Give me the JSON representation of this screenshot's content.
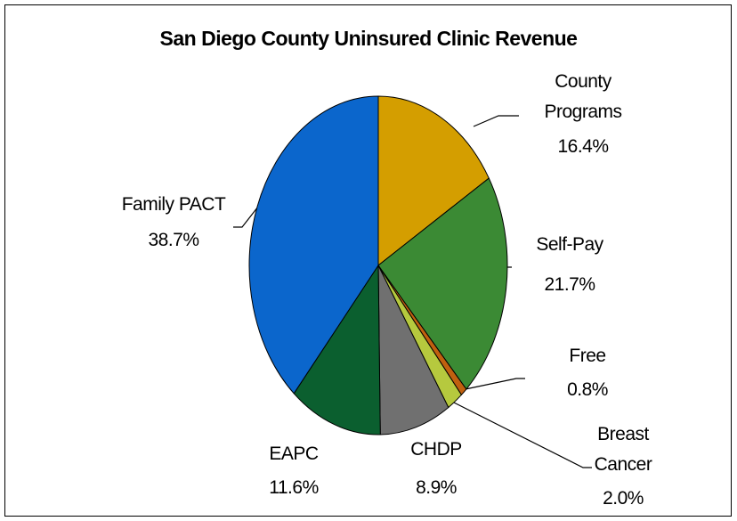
{
  "chart_data": {
    "type": "pie",
    "title": "San Diego County Uninsured Clinic Revenue",
    "categories": [
      "County Programs",
      "Self-Pay",
      "Free",
      "Breast Cancer",
      "CHDP",
      "EAPC",
      "Family PACT"
    ],
    "values": [
      16.4,
      21.7,
      0.8,
      2.0,
      8.9,
      11.6,
      38.7
    ],
    "value_labels": [
      "16.4%",
      "21.7%",
      "0.8%",
      "2.0%",
      "8.9%",
      "11.6%",
      "38.7%"
    ],
    "colors": [
      "#d49e00",
      "#3b8a34",
      "#c0600f",
      "#b6c93e",
      "#707070",
      "#0b5f2f",
      "#0b66cc"
    ]
  }
}
